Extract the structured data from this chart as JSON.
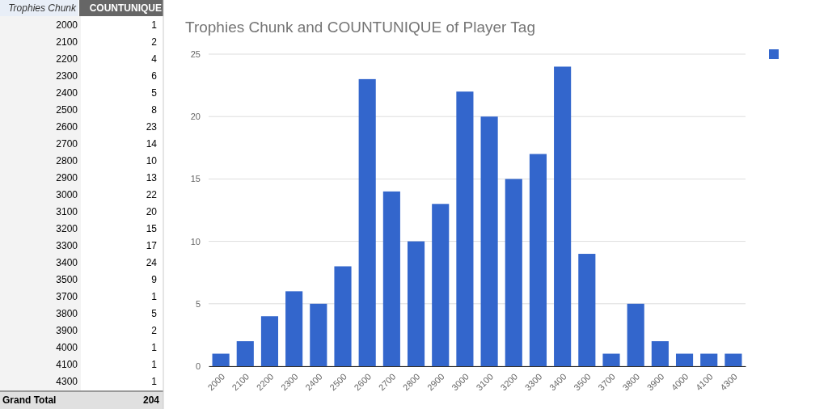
{
  "chart_data": [
    {
      "type": "heatmap",
      "ylabel": "Trophies Chunk",
      "categories": [
        "COUNTUNIQUE"
      ],
      "y_categories": [
        "2000",
        "2100",
        "2200",
        "2300",
        "2400",
        "2500",
        "2600",
        "2700",
        "2800",
        "2900",
        "3000",
        "3100",
        "3200",
        "3300",
        "3400",
        "3500",
        "3700",
        "3800",
        "3900",
        "4000",
        "4100",
        "4300"
      ],
      "cells": [
        [
          1
        ],
        [
          2
        ],
        [
          4
        ],
        [
          6
        ],
        [
          5
        ],
        [
          8
        ],
        [
          23
        ],
        [
          14
        ],
        [
          10
        ],
        [
          13
        ],
        [
          22
        ],
        [
          20
        ],
        [
          15
        ],
        [
          17
        ],
        [
          24
        ],
        [
          9
        ],
        [
          1
        ],
        [
          5
        ],
        [
          2
        ],
        [
          1
        ],
        [
          1
        ],
        [
          1
        ]
      ],
      "data_labels": true,
      "annotations": [
        "Grand Total",
        "204"
      ]
    },
    {
      "type": "bar",
      "title": "Trophies Chunk and COUNTUNIQUE of Player Tag",
      "categories": [
        "2000",
        "2100",
        "2200",
        "2300",
        "2400",
        "2500",
        "2600",
        "2700",
        "2800",
        "2900",
        "3000",
        "3100",
        "3200",
        "3300",
        "3400",
        "3500",
        "3700",
        "3800",
        "3900",
        "4000",
        "4100",
        "4300"
      ],
      "series": [
        {
          "color": "#3366cc",
          "values": [
            1,
            2,
            4,
            6,
            5,
            8,
            23,
            14,
            10,
            13,
            22,
            20,
            15,
            17,
            24,
            9,
            1,
            5,
            2,
            1,
            1,
            1
          ]
        }
      ],
      "ylim": [
        0,
        25
      ],
      "yticks": [
        0,
        5,
        10,
        15,
        20,
        25
      ],
      "grid": "y"
    }
  ]
}
